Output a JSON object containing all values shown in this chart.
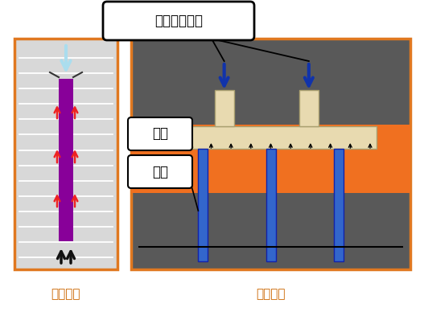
{
  "bg_color": "#ffffff",
  "title_box_text": "上部结构荷载",
  "label_chengtai": "承台",
  "label_jizhuang": "基桩",
  "label_single": "单桩基础",
  "label_group": "群桩基础",
  "single_box_color": "#d8d8d8",
  "single_box_border": "#e07820",
  "group_box_color": "#595959",
  "group_box_border": "#e07820",
  "orange_slab_color": "#f07020",
  "pile_cap_color": "#e8dab0",
  "single_pile_color": "#880099",
  "group_pile_color": "#3366cc",
  "arrow_down_color": "#aaddee",
  "arrow_down_group_color": "#1133aa",
  "red_arrow_color": "#ee2222",
  "black_arrow_color": "#111111",
  "text_color": "#000000",
  "label_text_color": "#cc6600",
  "title_box_bg": "#ffffff",
  "label_box_bg": "#ffffff"
}
